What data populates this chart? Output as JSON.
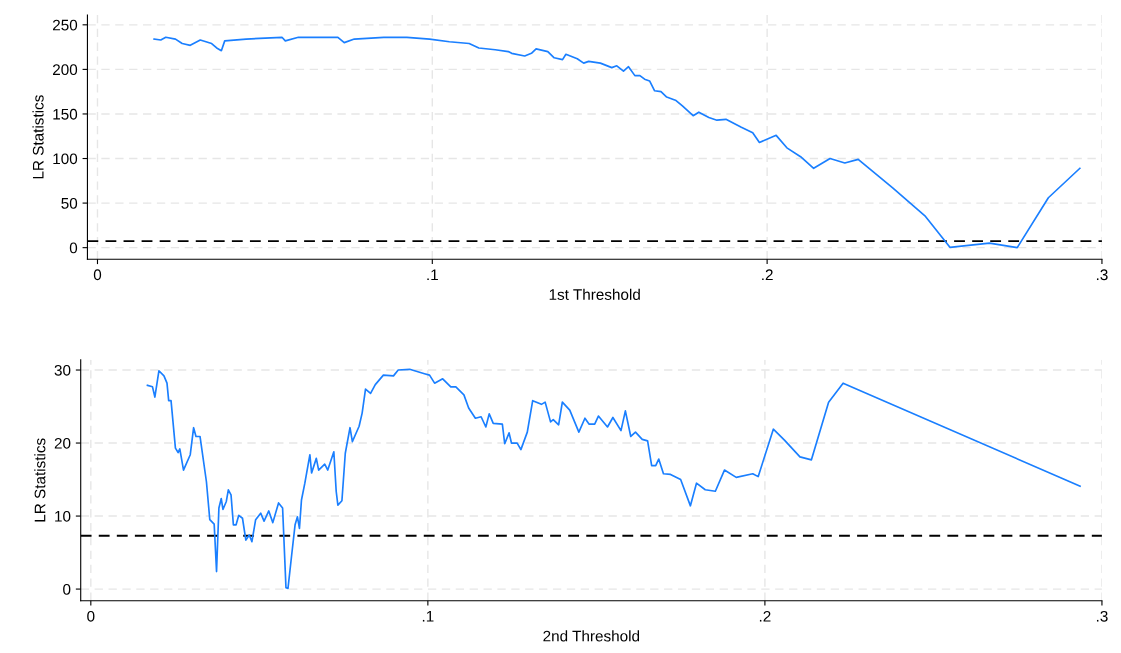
{
  "chart_data": [
    {
      "type": "line",
      "xlabel": "1st Threshold",
      "ylabel": "LR Statistics",
      "grid": true,
      "line_style": "solid",
      "xlim": [
        -0.003,
        0.3
      ],
      "ylim": [
        -13,
        261
      ],
      "xticks": [
        {
          "value": 0,
          "label": "0"
        },
        {
          "value": 0.1,
          "label": ".1"
        },
        {
          "value": 0.2,
          "label": ".2"
        },
        {
          "value": 0.3,
          "label": ".3"
        }
      ],
      "yticks": [
        0,
        50,
        100,
        150,
        200,
        250
      ],
      "ref_lines": [
        {
          "axis": "y",
          "value": 7.3,
          "color": "#000000",
          "line_style": "dashed"
        }
      ],
      "series": [
        {
          "color": "#1a7fff",
          "x": [
            0.0169,
            0.0189,
            0.0204,
            0.0233,
            0.0253,
            0.0277,
            0.0307,
            0.0341,
            0.0356,
            0.037,
            0.038,
            0.0444,
            0.0551,
            0.0561,
            0.06,
            0.0718,
            0.0737,
            0.0767,
            0.0855,
            0.0924,
            0.0992,
            0.1051,
            0.111,
            0.1139,
            0.1188,
            0.1227,
            0.1237,
            0.1276,
            0.1296,
            0.131,
            0.1345,
            0.1364,
            0.1389,
            0.1399,
            0.1433,
            0.1452,
            0.1467,
            0.1502,
            0.1536,
            0.1551,
            0.1571,
            0.1586,
            0.1605,
            0.162,
            0.1634,
            0.1649,
            0.1664,
            0.1683,
            0.17,
            0.1728,
            0.1747,
            0.1779,
            0.1796,
            0.1826,
            0.185,
            0.1877,
            0.1923,
            0.1957,
            0.1977,
            0.2027,
            0.2059,
            0.21,
            0.2139,
            0.2188,
            0.2232,
            0.2272,
            0.2375,
            0.2473,
            0.2546,
            0.2664,
            0.2747,
            0.284,
            0.2934
          ],
          "values": [
            234,
            233,
            236,
            234,
            229,
            227,
            233,
            229,
            224,
            221,
            232,
            234,
            236,
            232,
            236,
            236,
            230,
            234,
            236,
            236,
            234,
            231,
            229,
            224,
            222,
            220,
            218,
            215,
            218,
            223,
            220,
            213,
            211,
            217,
            212,
            207,
            209,
            207,
            202,
            204,
            198,
            203,
            193,
            193,
            189,
            187,
            176,
            175,
            169,
            165,
            159,
            148,
            152,
            146,
            143,
            144,
            135,
            129,
            118,
            126,
            112,
            102,
            89,
            100,
            95,
            99,
            67,
            35,
            0.4,
            5,
            0,
            56,
            89
          ]
        }
      ]
    },
    {
      "type": "line",
      "xlabel": "2nd Threshold",
      "ylabel": "LR Statistics",
      "grid": true,
      "line_style": "solid",
      "xlim": [
        -0.003,
        0.3
      ],
      "ylim": [
        -1.6,
        31.4
      ],
      "xticks": [
        {
          "value": 0,
          "label": "0"
        },
        {
          "value": 0.1,
          "label": ".1"
        },
        {
          "value": 0.2,
          "label": ".2"
        },
        {
          "value": 0.3,
          "label": ".3"
        }
      ],
      "yticks": [
        0,
        10,
        20,
        30
      ],
      "ref_lines": [
        {
          "axis": "y",
          "value": 7.3,
          "color": "#000000",
          "line_style": "dashed"
        }
      ],
      "series": [
        {
          "color": "#1a7fff",
          "x": [
            0.0168,
            0.0183,
            0.019,
            0.0202,
            0.0217,
            0.0226,
            0.0231,
            0.0238,
            0.0251,
            0.0259,
            0.0264,
            0.0275,
            0.0295,
            0.0305,
            0.0312,
            0.0324,
            0.0343,
            0.0353,
            0.0366,
            0.0373,
            0.038,
            0.0387,
            0.0392,
            0.0402,
            0.0408,
            0.0416,
            0.0423,
            0.0431,
            0.0439,
            0.045,
            0.046,
            0.047,
            0.0478,
            0.0489,
            0.0504,
            0.0514,
            0.0528,
            0.054,
            0.0557,
            0.0569,
            0.0579,
            0.0585,
            0.0596,
            0.0606,
            0.0613,
            0.0619,
            0.0625,
            0.0635,
            0.065,
            0.0655,
            0.0669,
            0.0676,
            0.0694,
            0.0703,
            0.0721,
            0.0728,
            0.0733,
            0.0745,
            0.0755,
            0.0769,
            0.0776,
            0.0796,
            0.0805,
            0.0815,
            0.083,
            0.0844,
            0.0868,
            0.0898,
            0.0912,
            0.0946,
            0.099,
            0.1005,
            0.102,
            0.1044,
            0.1068,
            0.1083,
            0.1107,
            0.1121,
            0.1141,
            0.1158,
            0.1172,
            0.1182,
            0.1194,
            0.1221,
            0.1228,
            0.1241,
            0.1248,
            0.1265,
            0.1276,
            0.1295,
            0.1311,
            0.1337,
            0.1348,
            0.1364,
            0.1372,
            0.1388,
            0.1399,
            0.1421,
            0.1448,
            0.1466,
            0.1478,
            0.1495,
            0.1506,
            0.1533,
            0.1549,
            0.1573,
            0.1586,
            0.1602,
            0.1616,
            0.1636,
            0.1652,
            0.1664,
            0.1676,
            0.1685,
            0.1699,
            0.172,
            0.175,
            0.1779,
            0.1797,
            0.1823,
            0.1853,
            0.188,
            0.1915,
            0.1964,
            0.198,
            0.2025,
            0.2058,
            0.2104,
            0.2138,
            0.2189,
            0.2232,
            0.2935
          ],
          "values": [
            27.9,
            27.7,
            26.3,
            29.9,
            29.2,
            28.2,
            25.8,
            25.8,
            19.3,
            18.7,
            19.2,
            16.3,
            18.4,
            22.1,
            20.9,
            20.9,
            14.7,
            9.5,
            8.9,
            2.4,
            11.1,
            12.4,
            10.9,
            12.0,
            13.6,
            12.9,
            8.8,
            8.8,
            10.1,
            9.7,
            6.7,
            7.4,
            6.5,
            9.5,
            10.4,
            9.3,
            10.7,
            9.1,
            11.8,
            11.1,
            0.2,
            0.1,
            4.7,
            8.8,
            9.9,
            8.3,
            12.2,
            14.5,
            18.4,
            15.9,
            17.9,
            16.3,
            17.1,
            16.3,
            18.8,
            13.4,
            11.5,
            12.1,
            18.6,
            22.1,
            20.2,
            22.3,
            24.1,
            27.4,
            26.8,
            28.0,
            29.3,
            29.2,
            30.0,
            30.1,
            29.5,
            29.3,
            28.2,
            28.8,
            27.7,
            27.7,
            26.6,
            24.8,
            23.4,
            23.6,
            22.2,
            24.0,
            22.7,
            22.6,
            19.9,
            21.4,
            20.0,
            20.0,
            19.1,
            21.5,
            25.8,
            25.3,
            25.6,
            22.9,
            23.2,
            22.5,
            25.6,
            24.5,
            21.5,
            23.4,
            22.6,
            22.6,
            23.7,
            22.2,
            23.5,
            21.7,
            24.4,
            20.9,
            21.5,
            20.5,
            20.3,
            16.9,
            16.9,
            17.8,
            15.8,
            15.7,
            15.0,
            11.4,
            14.5,
            13.6,
            13.4,
            16.3,
            15.3,
            15.8,
            15.4,
            21.9,
            20.4,
            18.1,
            17.7,
            25.6,
            28.2,
            14.1
          ]
        }
      ]
    }
  ]
}
